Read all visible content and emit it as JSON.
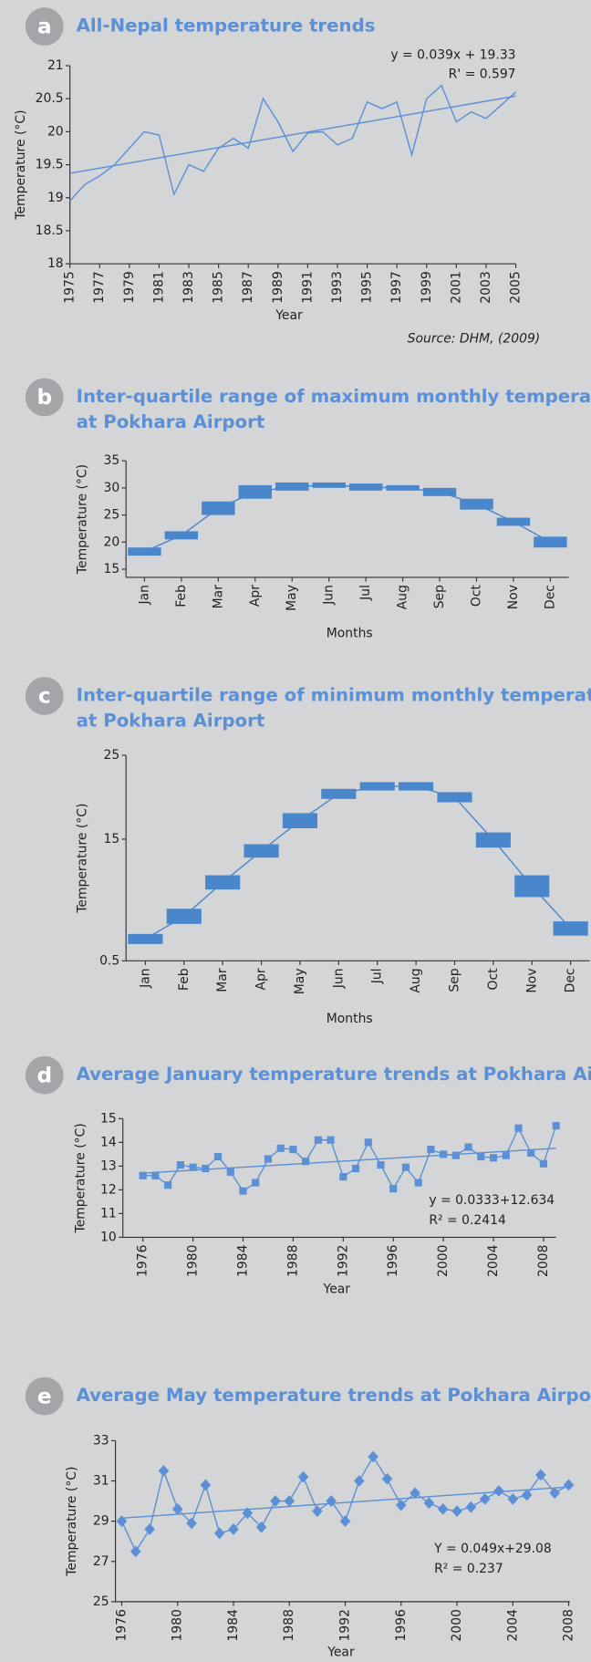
{
  "chart_data": [
    {
      "type": "line",
      "label": "a",
      "title": [
        "All-Nepal temperature trends"
      ],
      "x_label": "Year",
      "y_label": "Temperature (°C)",
      "annotations": [
        "y = 0.039x + 19.33",
        "R' = 0.597"
      ],
      "source": "Source: DHM, (2009)",
      "x": [
        1975,
        1976,
        1977,
        1978,
        1979,
        1980,
        1981,
        1982,
        1983,
        1984,
        1985,
        1986,
        1987,
        1988,
        1989,
        1990,
        1991,
        1992,
        1993,
        1994,
        1995,
        1996,
        1997,
        1998,
        1999,
        2000,
        2001,
        2002,
        2003,
        2004,
        2005
      ],
      "values": [
        18.95,
        19.2,
        19.33,
        19.5,
        19.75,
        20.0,
        19.95,
        19.05,
        19.5,
        19.4,
        19.75,
        19.9,
        19.75,
        20.5,
        20.15,
        19.7,
        19.98,
        20.0,
        19.8,
        19.9,
        20.45,
        20.35,
        20.45,
        19.65,
        20.5,
        20.7,
        20.15,
        20.3,
        20.2,
        20.4,
        20.6
      ],
      "color": "#5b8fd6",
      "trendline": {
        "x": [
          1975,
          2005
        ],
        "values": [
          19.37,
          20.54
        ]
      },
      "xlim": [
        1975,
        2005
      ],
      "xticks": [
        1975,
        1977,
        1979,
        1981,
        1983,
        1985,
        1987,
        1989,
        1991,
        1993,
        1995,
        1997,
        1999,
        2001,
        2003,
        2005
      ],
      "ylim": [
        18,
        21
      ],
      "yticks": [
        18,
        18.5,
        19,
        19.5,
        20,
        20.5,
        21
      ]
    },
    {
      "type": "range",
      "label": "b",
      "title": [
        "Inter-quartile range of maximum monthly temperatures",
        "at Pokhara Airport"
      ],
      "x_label": "Months",
      "y_label": "Temperature (°C)",
      "categories": [
        "Jan",
        "Feb",
        "Mar",
        "Apr",
        "May",
        "Jun",
        "Jul",
        "Aug",
        "Sep",
        "Oct",
        "Nov",
        "Dec"
      ],
      "low": [
        17.5,
        20.5,
        25,
        28,
        29.5,
        30,
        29.5,
        29.5,
        28.5,
        26,
        23,
        19
      ],
      "high": [
        19,
        22,
        27.5,
        30.5,
        31,
        31,
        30.8,
        30.5,
        30,
        28,
        24.5,
        21
      ],
      "color": "#4a86cc",
      "ylim": [
        13.5,
        35
      ],
      "yticks": [
        15,
        20,
        25,
        30,
        35
      ]
    },
    {
      "type": "range",
      "label": "c",
      "title": [
        "Inter-quartile range of minimum monthly temperatures",
        "at Pokhara Airport"
      ],
      "x_label": "Months",
      "y_label": "Temperature (°C)",
      "categories": [
        "Jan",
        "Feb",
        "Mar",
        "Apr",
        "May",
        "Jun",
        "Jul",
        "Aug",
        "Sep",
        "Oct",
        "Nov",
        "Dec"
      ],
      "low": [
        2.5,
        4.9,
        9.0,
        12.8,
        16.3,
        19.8,
        20.8,
        20.8,
        19.4,
        14.0,
        8.1,
        3.5
      ],
      "high": [
        3.7,
        6.7,
        10.7,
        14.4,
        18.1,
        21.0,
        21.8,
        21.8,
        20.6,
        15.8,
        10.7,
        5.2
      ],
      "color": "#4a86cc",
      "ylim": [
        0.5,
        25
      ],
      "yticks": [
        0.5,
        15,
        25
      ]
    },
    {
      "type": "line",
      "label": "d",
      "title": [
        "Average January temperature trends at Pokhara Airport"
      ],
      "x_label": "Year",
      "y_label": "Temperature (°C)",
      "annotations": [
        "y = 0.0333+12.634",
        "R² = 0.2414"
      ],
      "marker": "square",
      "x": [
        1976,
        1977,
        1978,
        1979,
        1980,
        1981,
        1982,
        1983,
        1984,
        1985,
        1986,
        1987,
        1988,
        1989,
        1990,
        1991,
        1992,
        1993,
        1994,
        1995,
        1996,
        1997,
        1998,
        1999,
        2000,
        2001,
        2002,
        2003,
        2004,
        2005,
        2006,
        2007,
        2008,
        2009
      ],
      "values": [
        12.6,
        12.6,
        12.2,
        13.05,
        12.95,
        12.9,
        13.4,
        12.75,
        11.95,
        12.3,
        13.3,
        13.75,
        13.7,
        13.2,
        14.1,
        14.1,
        12.55,
        12.9,
        14.0,
        13.05,
        12.05,
        12.95,
        12.3,
        13.7,
        13.5,
        13.45,
        13.8,
        13.4,
        13.35,
        13.45,
        14.6,
        13.55,
        13.1,
        14.7
      ],
      "color": "#5b8fd6",
      "trendline": {
        "x": [
          1976,
          2009
        ],
        "values": [
          12.7,
          13.75
        ]
      },
      "xlim": [
        1974.4,
        2009.0
      ],
      "xticks": [
        1976,
        1980,
        1984,
        1988,
        1992,
        1996,
        2000,
        2004,
        2008
      ],
      "ylim": [
        10,
        15
      ],
      "yticks": [
        10,
        11,
        12,
        13,
        14,
        15
      ]
    },
    {
      "type": "line",
      "label": "e",
      "title": [
        "Average May temperature trends at Pokhara Airport"
      ],
      "x_label": "Year",
      "y_label": "Temperature (°C)",
      "annotations": [
        "Y = 0.049x+29.08",
        "R² = 0.237"
      ],
      "marker": "diamond",
      "x": [
        1976,
        1977,
        1978,
        1979,
        1980,
        1981,
        1982,
        1983,
        1984,
        1985,
        1986,
        1987,
        1988,
        1989,
        1990,
        1991,
        1992,
        1993,
        1994,
        1995,
        1996,
        1997,
        1998,
        1999,
        2000,
        2001,
        2002,
        2003,
        2004,
        2005,
        2006,
        2007,
        2008
      ],
      "values": [
        29.0,
        27.5,
        28.6,
        31.5,
        29.6,
        28.9,
        30.8,
        28.4,
        28.6,
        29.4,
        28.7,
        30.0,
        30.0,
        31.2,
        29.5,
        30.0,
        29.0,
        31.0,
        32.2,
        31.1,
        29.8,
        30.4,
        29.9,
        29.6,
        29.5,
        29.7,
        30.1,
        30.5,
        30.1,
        30.3,
        31.3,
        30.4,
        30.8
      ],
      "color": "#5b8fd6",
      "trendline": {
        "x": [
          1976,
          2008
        ],
        "values": [
          29.15,
          30.7
        ]
      },
      "xlim": [
        1975.55,
        2008.08
      ],
      "xticks": [
        1976,
        1980,
        1984,
        1988,
        1992,
        1996,
        2000,
        2004,
        2008
      ],
      "ylim": [
        25,
        33
      ],
      "yticks": [
        25,
        27,
        29,
        31,
        33
      ]
    }
  ]
}
